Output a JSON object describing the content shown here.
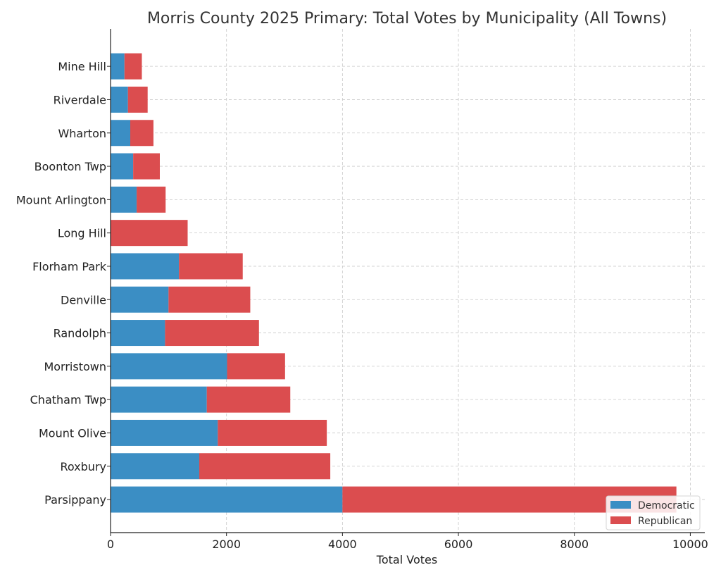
{
  "chart_data": {
    "type": "bar",
    "orientation": "horizontal",
    "stacked": true,
    "title": "Morris County 2025 Primary: Total Votes by Municipality (All Towns)",
    "xlabel": "Total Votes",
    "ylabel": "",
    "xlim": [
      0,
      10250
    ],
    "xticks": [
      0,
      2000,
      4000,
      6000,
      8000,
      10000
    ],
    "grid": true,
    "legend_position": "lower-right",
    "categories": [
      "Parsippany",
      "Roxbury",
      "Mount Olive",
      "Chatham Twp",
      "Morristown",
      "Randolph",
      "Denville",
      "Florham Park",
      "Long Hill",
      "Mount Arlington",
      "Boonton Twp",
      "Wharton",
      "Riverdale",
      "Mine Hill"
    ],
    "series": [
      {
        "name": "Democratic",
        "color": "#3b8ec4",
        "values": [
          4000,
          1530,
          1850,
          1660,
          2010,
          940,
          1000,
          1180,
          0,
          450,
          390,
          340,
          300,
          240
        ]
      },
      {
        "name": "Republican",
        "color": "#db4d4f",
        "values": [
          5760,
          2260,
          1880,
          1440,
          1000,
          1620,
          1410,
          1100,
          1330,
          500,
          460,
          400,
          340,
          300
        ]
      }
    ]
  }
}
